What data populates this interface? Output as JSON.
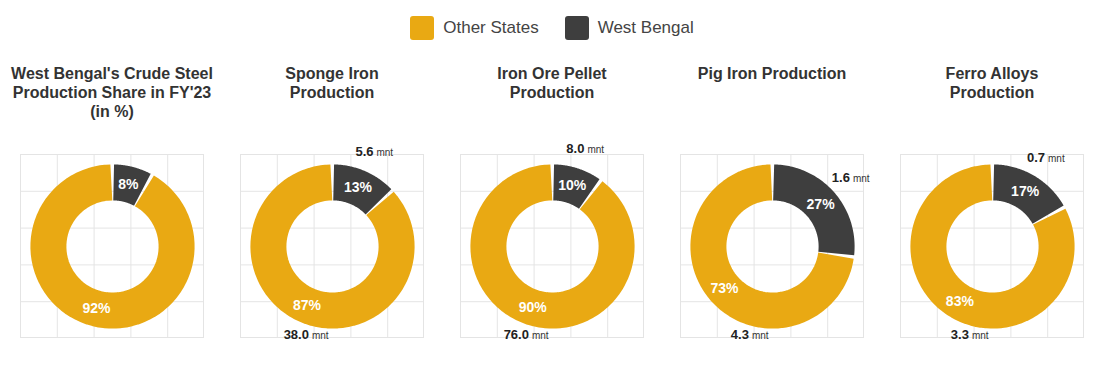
{
  "chart_data": [
    {
      "type": "donut",
      "title": "West Bengal's Crude Steel Production Share in FY'23 (in %)",
      "categories": [
        "Other States",
        "West Bengal"
      ],
      "values": [
        92,
        8
      ],
      "value_labels": [
        "92%",
        "8%"
      ],
      "colors": [
        "#e9a913",
        "#3e3e3e"
      ],
      "data_labels": true,
      "legend": "top"
    },
    {
      "type": "donut",
      "title": "Sponge Iron Production",
      "categories": [
        "Other States",
        "West Bengal"
      ],
      "values": [
        87,
        13
      ],
      "value_labels": [
        "87%",
        "13%"
      ],
      "colors": [
        "#e9a913",
        "#3e3e3e"
      ],
      "data_labels": true,
      "production": {
        "values": [
          38.0,
          5.6
        ],
        "labels": [
          "38.0",
          "5.6"
        ],
        "unit": "mnt"
      }
    },
    {
      "type": "donut",
      "title": "Iron Ore Pellet Production",
      "categories": [
        "Other States",
        "West Bengal"
      ],
      "values": [
        90,
        10
      ],
      "value_labels": [
        "90%",
        "10%"
      ],
      "colors": [
        "#e9a913",
        "#3e3e3e"
      ],
      "data_labels": true,
      "production": {
        "values": [
          76.0,
          8.0
        ],
        "labels": [
          "76.0",
          "8.0"
        ],
        "unit": "mnt"
      }
    },
    {
      "type": "donut",
      "title": "Pig Iron Production",
      "categories": [
        "Other States",
        "West Bengal"
      ],
      "values": [
        73,
        27
      ],
      "value_labels": [
        "73%",
        "27%"
      ],
      "colors": [
        "#e9a913",
        "#3e3e3e"
      ],
      "data_labels": true,
      "production": {
        "values": [
          4.3,
          1.6
        ],
        "labels": [
          "4.3",
          "1.6"
        ],
        "unit": "mnt"
      }
    },
    {
      "type": "donut",
      "title": "Ferro Alloys Production",
      "categories": [
        "Other States",
        "West Bengal"
      ],
      "values": [
        83,
        17
      ],
      "value_labels": [
        "83%",
        "17%"
      ],
      "colors": [
        "#e9a913",
        "#3e3e3e"
      ],
      "data_labels": true,
      "production": {
        "values": [
          3.3,
          0.7
        ],
        "labels": [
          "3.3",
          "0.7"
        ],
        "unit": "mnt"
      }
    }
  ]
}
